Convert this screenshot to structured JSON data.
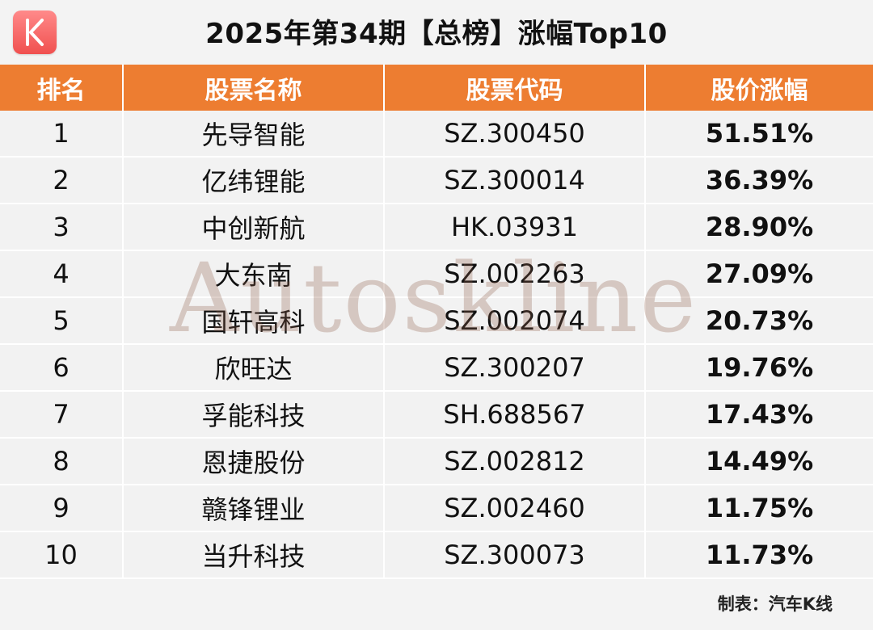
{
  "title": "2025年第34期【总榜】涨幅Top10",
  "logo": {
    "icon": "kline-k-logo",
    "letter": "K",
    "color": "#f0504f"
  },
  "table": {
    "headers": [
      "排名",
      "股票名称",
      "股票代码",
      "股价涨幅"
    ],
    "rows": [
      {
        "rank": "1",
        "name": "先导智能",
        "code": "SZ.300450",
        "change": "51.51%"
      },
      {
        "rank": "2",
        "name": "亿纬锂能",
        "code": "SZ.300014",
        "change": "36.39%"
      },
      {
        "rank": "3",
        "name": "中创新航",
        "code": "HK.03931",
        "change": "28.90%"
      },
      {
        "rank": "4",
        "name": "大东南",
        "code": "SZ.002263",
        "change": "27.09%"
      },
      {
        "rank": "5",
        "name": "国轩高科",
        "code": "SZ.002074",
        "change": "20.73%"
      },
      {
        "rank": "6",
        "name": "欣旺达",
        "code": "SZ.300207",
        "change": "19.76%"
      },
      {
        "rank": "7",
        "name": "孚能科技",
        "code": "SH.688567",
        "change": "17.43%"
      },
      {
        "rank": "8",
        "name": "恩捷股份",
        "code": "SZ.002812",
        "change": "14.49%"
      },
      {
        "rank": "9",
        "name": "赣锋锂业",
        "code": "SZ.002460",
        "change": "11.75%"
      },
      {
        "rank": "10",
        "name": "当升科技",
        "code": "SZ.300073",
        "change": "11.73%"
      }
    ]
  },
  "watermark": "Autoskline",
  "footer": "制表：汽车K线",
  "colors": {
    "header_bg": "#ed7d31",
    "header_text": "#ffffff",
    "row_bg": "#f2f2f2",
    "change_text": "#ff0000"
  }
}
